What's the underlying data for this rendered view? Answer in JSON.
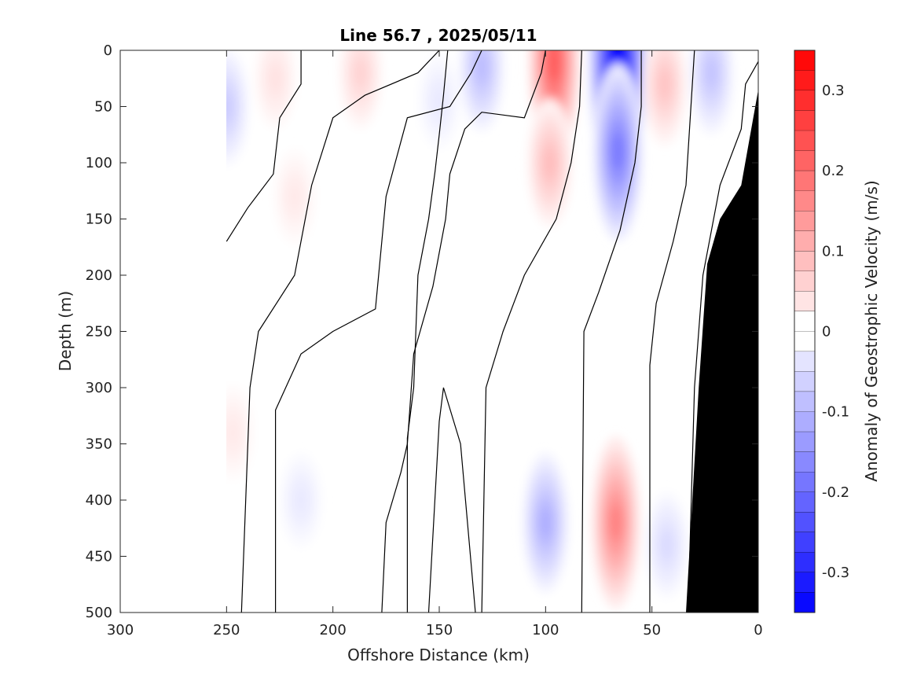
{
  "chart_data": {
    "type": "heatmap",
    "title": "Line 56.7 , 2025/05/11",
    "xlabel": "Offshore Distance (km)",
    "ylabel": "Depth (m)",
    "xlim": [
      300,
      0
    ],
    "ylim": [
      0,
      500
    ],
    "x_ticks": [
      300,
      250,
      200,
      150,
      100,
      50,
      0
    ],
    "y_ticks": [
      0,
      50,
      100,
      150,
      200,
      250,
      300,
      350,
      400,
      450,
      500
    ],
    "colorbar": {
      "label": "Anomaly of Geostrophic Velocity (m/s)",
      "range": [
        -0.35,
        0.35
      ],
      "step": 0.025,
      "tick_values": [
        0.3,
        0.2,
        0.1,
        0,
        -0.1,
        -0.2,
        -0.3
      ],
      "tick_labels": [
        "0.3",
        "0.2",
        "0.1",
        "0",
        "-0.1",
        "-0.2",
        "-0.3"
      ],
      "positive_color": "#ff0000",
      "negative_color": "#0000ff",
      "zero_color": "#ffffff"
    },
    "data_coverage_x": [
      250,
      0
    ],
    "bathymetry": [
      [
        34,
        500
      ],
      [
        28,
        300
      ],
      [
        24,
        190
      ],
      [
        18,
        150
      ],
      [
        8,
        120
      ],
      [
        0,
        35
      ]
    ],
    "anomalies": [
      {
        "x": 250,
        "depth": 50,
        "value": -0.07
      },
      {
        "x": 227,
        "depth": 25,
        "value": 0.04
      },
      {
        "x": 187,
        "depth": 20,
        "value": 0.06
      },
      {
        "x": 218,
        "depth": 130,
        "value": 0.03
      },
      {
        "x": 150,
        "depth": 45,
        "value": -0.03
      },
      {
        "x": 130,
        "depth": 15,
        "value": -0.09
      },
      {
        "x": 96,
        "depth": 10,
        "value": 0.22
      },
      {
        "x": 98,
        "depth": 100,
        "value": 0.09
      },
      {
        "x": 66,
        "depth": 10,
        "value": -0.35
      },
      {
        "x": 66,
        "depth": 90,
        "value": -0.18
      },
      {
        "x": 44,
        "depth": 30,
        "value": 0.08
      },
      {
        "x": 22,
        "depth": 20,
        "value": -0.08
      },
      {
        "x": 247,
        "depth": 340,
        "value": 0.03
      },
      {
        "x": 215,
        "depth": 400,
        "value": -0.03
      },
      {
        "x": 100,
        "depth": 420,
        "value": -0.11
      },
      {
        "x": 67,
        "depth": 420,
        "value": 0.17
      },
      {
        "x": 43,
        "depth": 440,
        "value": -0.05
      }
    ],
    "zero_contours": [
      [
        [
          227,
          500
        ],
        [
          227,
          320
        ],
        [
          215,
          270
        ],
        [
          200,
          250
        ],
        [
          180,
          230
        ],
        [
          175,
          130
        ],
        [
          165,
          60
        ],
        [
          145,
          50
        ],
        [
          135,
          20
        ],
        [
          130,
          0
        ]
      ],
      [
        [
          243,
          500
        ],
        [
          239,
          300
        ],
        [
          235,
          250
        ],
        [
          218,
          200
        ],
        [
          210,
          120
        ],
        [
          200,
          60
        ],
        [
          185,
          40
        ],
        [
          160,
          20
        ],
        [
          150,
          0
        ]
      ],
      [
        [
          250,
          170
        ],
        [
          240,
          140
        ],
        [
          228,
          110
        ],
        [
          225,
          60
        ],
        [
          215,
          30
        ],
        [
          215,
          0
        ]
      ],
      [
        [
          165,
          500
        ],
        [
          165,
          345
        ],
        [
          162,
          300
        ],
        [
          160,
          200
        ],
        [
          155,
          150
        ],
        [
          152,
          108
        ],
        [
          150,
          75
        ],
        [
          148,
          40
        ],
        [
          146,
          0
        ]
      ],
      [
        [
          177,
          500
        ],
        [
          175,
          420
        ],
        [
          168,
          375
        ],
        [
          165,
          350
        ],
        [
          162,
          270
        ],
        [
          153,
          210
        ],
        [
          147,
          150
        ],
        [
          145,
          110
        ],
        [
          138,
          70
        ],
        [
          130,
          55
        ],
        [
          110,
          60
        ],
        [
          102,
          20
        ],
        [
          100,
          0
        ]
      ],
      [
        [
          155,
          500
        ],
        [
          150,
          330
        ],
        [
          148,
          300
        ],
        [
          140,
          350
        ],
        [
          133,
          500
        ]
      ],
      [
        [
          130,
          500
        ],
        [
          128,
          300
        ],
        [
          120,
          250
        ],
        [
          110,
          200
        ],
        [
          95,
          150
        ],
        [
          88,
          100
        ],
        [
          84,
          50
        ],
        [
          83,
          0
        ]
      ],
      [
        [
          83,
          500
        ],
        [
          82,
          250
        ],
        [
          75,
          215
        ],
        [
          65,
          160
        ],
        [
          58,
          100
        ],
        [
          55,
          50
        ],
        [
          55,
          0
        ]
      ],
      [
        [
          51,
          500
        ],
        [
          51,
          280
        ],
        [
          48,
          225
        ],
        [
          40,
          170
        ],
        [
          34,
          120
        ],
        [
          32,
          60
        ],
        [
          30,
          0
        ]
      ],
      [
        [
          33,
          500
        ],
        [
          30,
          300
        ],
        [
          26,
          200
        ],
        [
          18,
          120
        ],
        [
          8,
          70
        ],
        [
          6,
          30
        ],
        [
          0,
          10
        ]
      ]
    ]
  }
}
